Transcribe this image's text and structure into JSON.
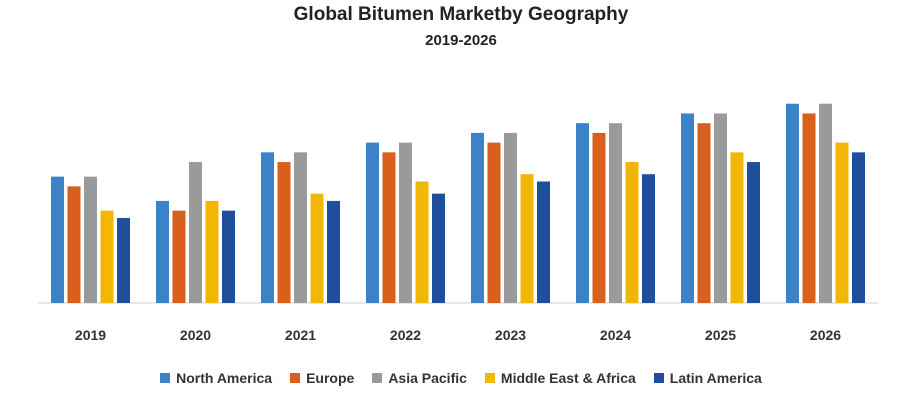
{
  "chart_data": {
    "type": "bar",
    "title": "Global Bitumen Marketby Geography",
    "subtitle": "2019-2026",
    "categories": [
      "2019",
      "2020",
      "2021",
      "2022",
      "2023",
      "2024",
      "2025",
      "2026"
    ],
    "series": [
      {
        "name": "North America",
        "color": "#3b82c6",
        "values": [
          52,
          42,
          62,
          66,
          70,
          74,
          78,
          82
        ]
      },
      {
        "name": "Europe",
        "color": "#d95f1c",
        "values": [
          48,
          38,
          58,
          62,
          66,
          70,
          74,
          78
        ]
      },
      {
        "name": "Asia Pacific",
        "color": "#9a9a9a",
        "values": [
          52,
          58,
          62,
          66,
          70,
          74,
          78,
          82
        ]
      },
      {
        "name": "Middle East & Africa",
        "color": "#f2b705",
        "values": [
          38,
          42,
          45,
          50,
          53,
          58,
          62,
          66
        ]
      },
      {
        "name": "Latin America",
        "color": "#1f4e9c",
        "values": [
          35,
          38,
          42,
          45,
          50,
          53,
          58,
          62
        ]
      }
    ],
    "ylim": [
      0,
      100
    ],
    "grid": false,
    "legend_position": "bottom"
  }
}
